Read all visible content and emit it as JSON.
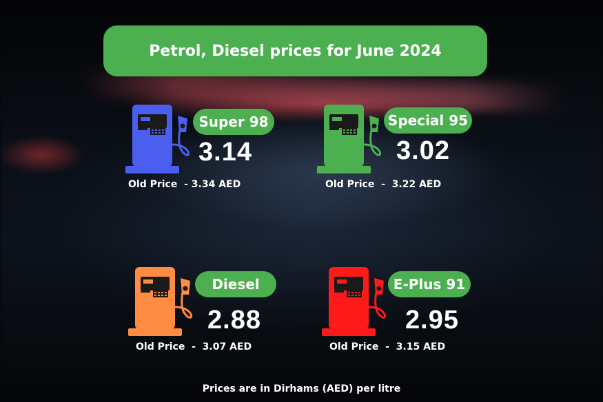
{
  "title": "Petrol, Diesel prices for June 2024",
  "footer": "Prices are in Dirhams (AED) per litre",
  "fuels": [
    {
      "name": "Super 98",
      "price": "3.14",
      "old_price": "Old Price  - 3.34 AED",
      "color": "#4a5ff0"
    },
    {
      "name": "Special 95",
      "price": "3.02",
      "old_price": "Old Price  -  3.22 AED",
      "color": "#4caf50"
    },
    {
      "name": "Diesel",
      "price": "2.88",
      "old_price": "Old Price  -  3.07 AED",
      "color": "#ff8c42"
    },
    {
      "name": "E-Plus 91",
      "price": "2.95",
      "old_price": "Old Price  -  3.15 AED",
      "color": "#ff1a1a"
    }
  ]
}
